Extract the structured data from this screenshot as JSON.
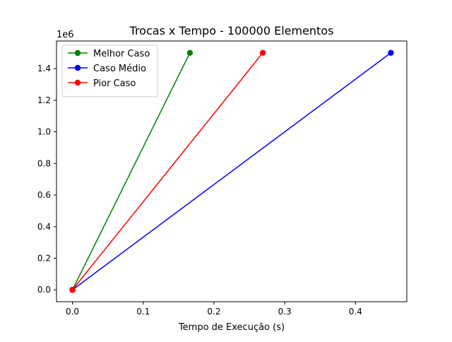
{
  "chart_data": {
    "type": "line",
    "title": "Trocas x Tempo - 100000 Elementos",
    "xlabel": "Tempo de Execução (s)",
    "ylabel": "",
    "y_offset_label": "1e6",
    "xlim": [
      -0.0225,
      0.4725
    ],
    "ylim": [
      -0.075,
      1.575
    ],
    "x_ticks": [
      0.0,
      0.1,
      0.2,
      0.3,
      0.4
    ],
    "x_tick_labels": [
      "0.0",
      "0.1",
      "0.2",
      "0.3",
      "0.4"
    ],
    "y_ticks": [
      0.0,
      0.2,
      0.4,
      0.6,
      0.8,
      1.0,
      1.2,
      1.4
    ],
    "y_tick_labels": [
      "0.0",
      "0.2",
      "0.4",
      "0.6",
      "0.8",
      "1.0",
      "1.2",
      "1.4"
    ],
    "grid": false,
    "legend_position": "top-left",
    "series": [
      {
        "name": "Melhor Caso",
        "color": "#008000",
        "x": [
          0.0,
          0.166
        ],
        "y": [
          0.0,
          1.5
        ]
      },
      {
        "name": "Caso Médio",
        "color": "#0000ff",
        "x": [
          0.0,
          0.45
        ],
        "y": [
          0.0,
          1.5
        ]
      },
      {
        "name": "Pior Caso",
        "color": "#ff0000",
        "x": [
          0.0,
          0.269
        ],
        "y": [
          0.0,
          1.5
        ]
      }
    ]
  }
}
